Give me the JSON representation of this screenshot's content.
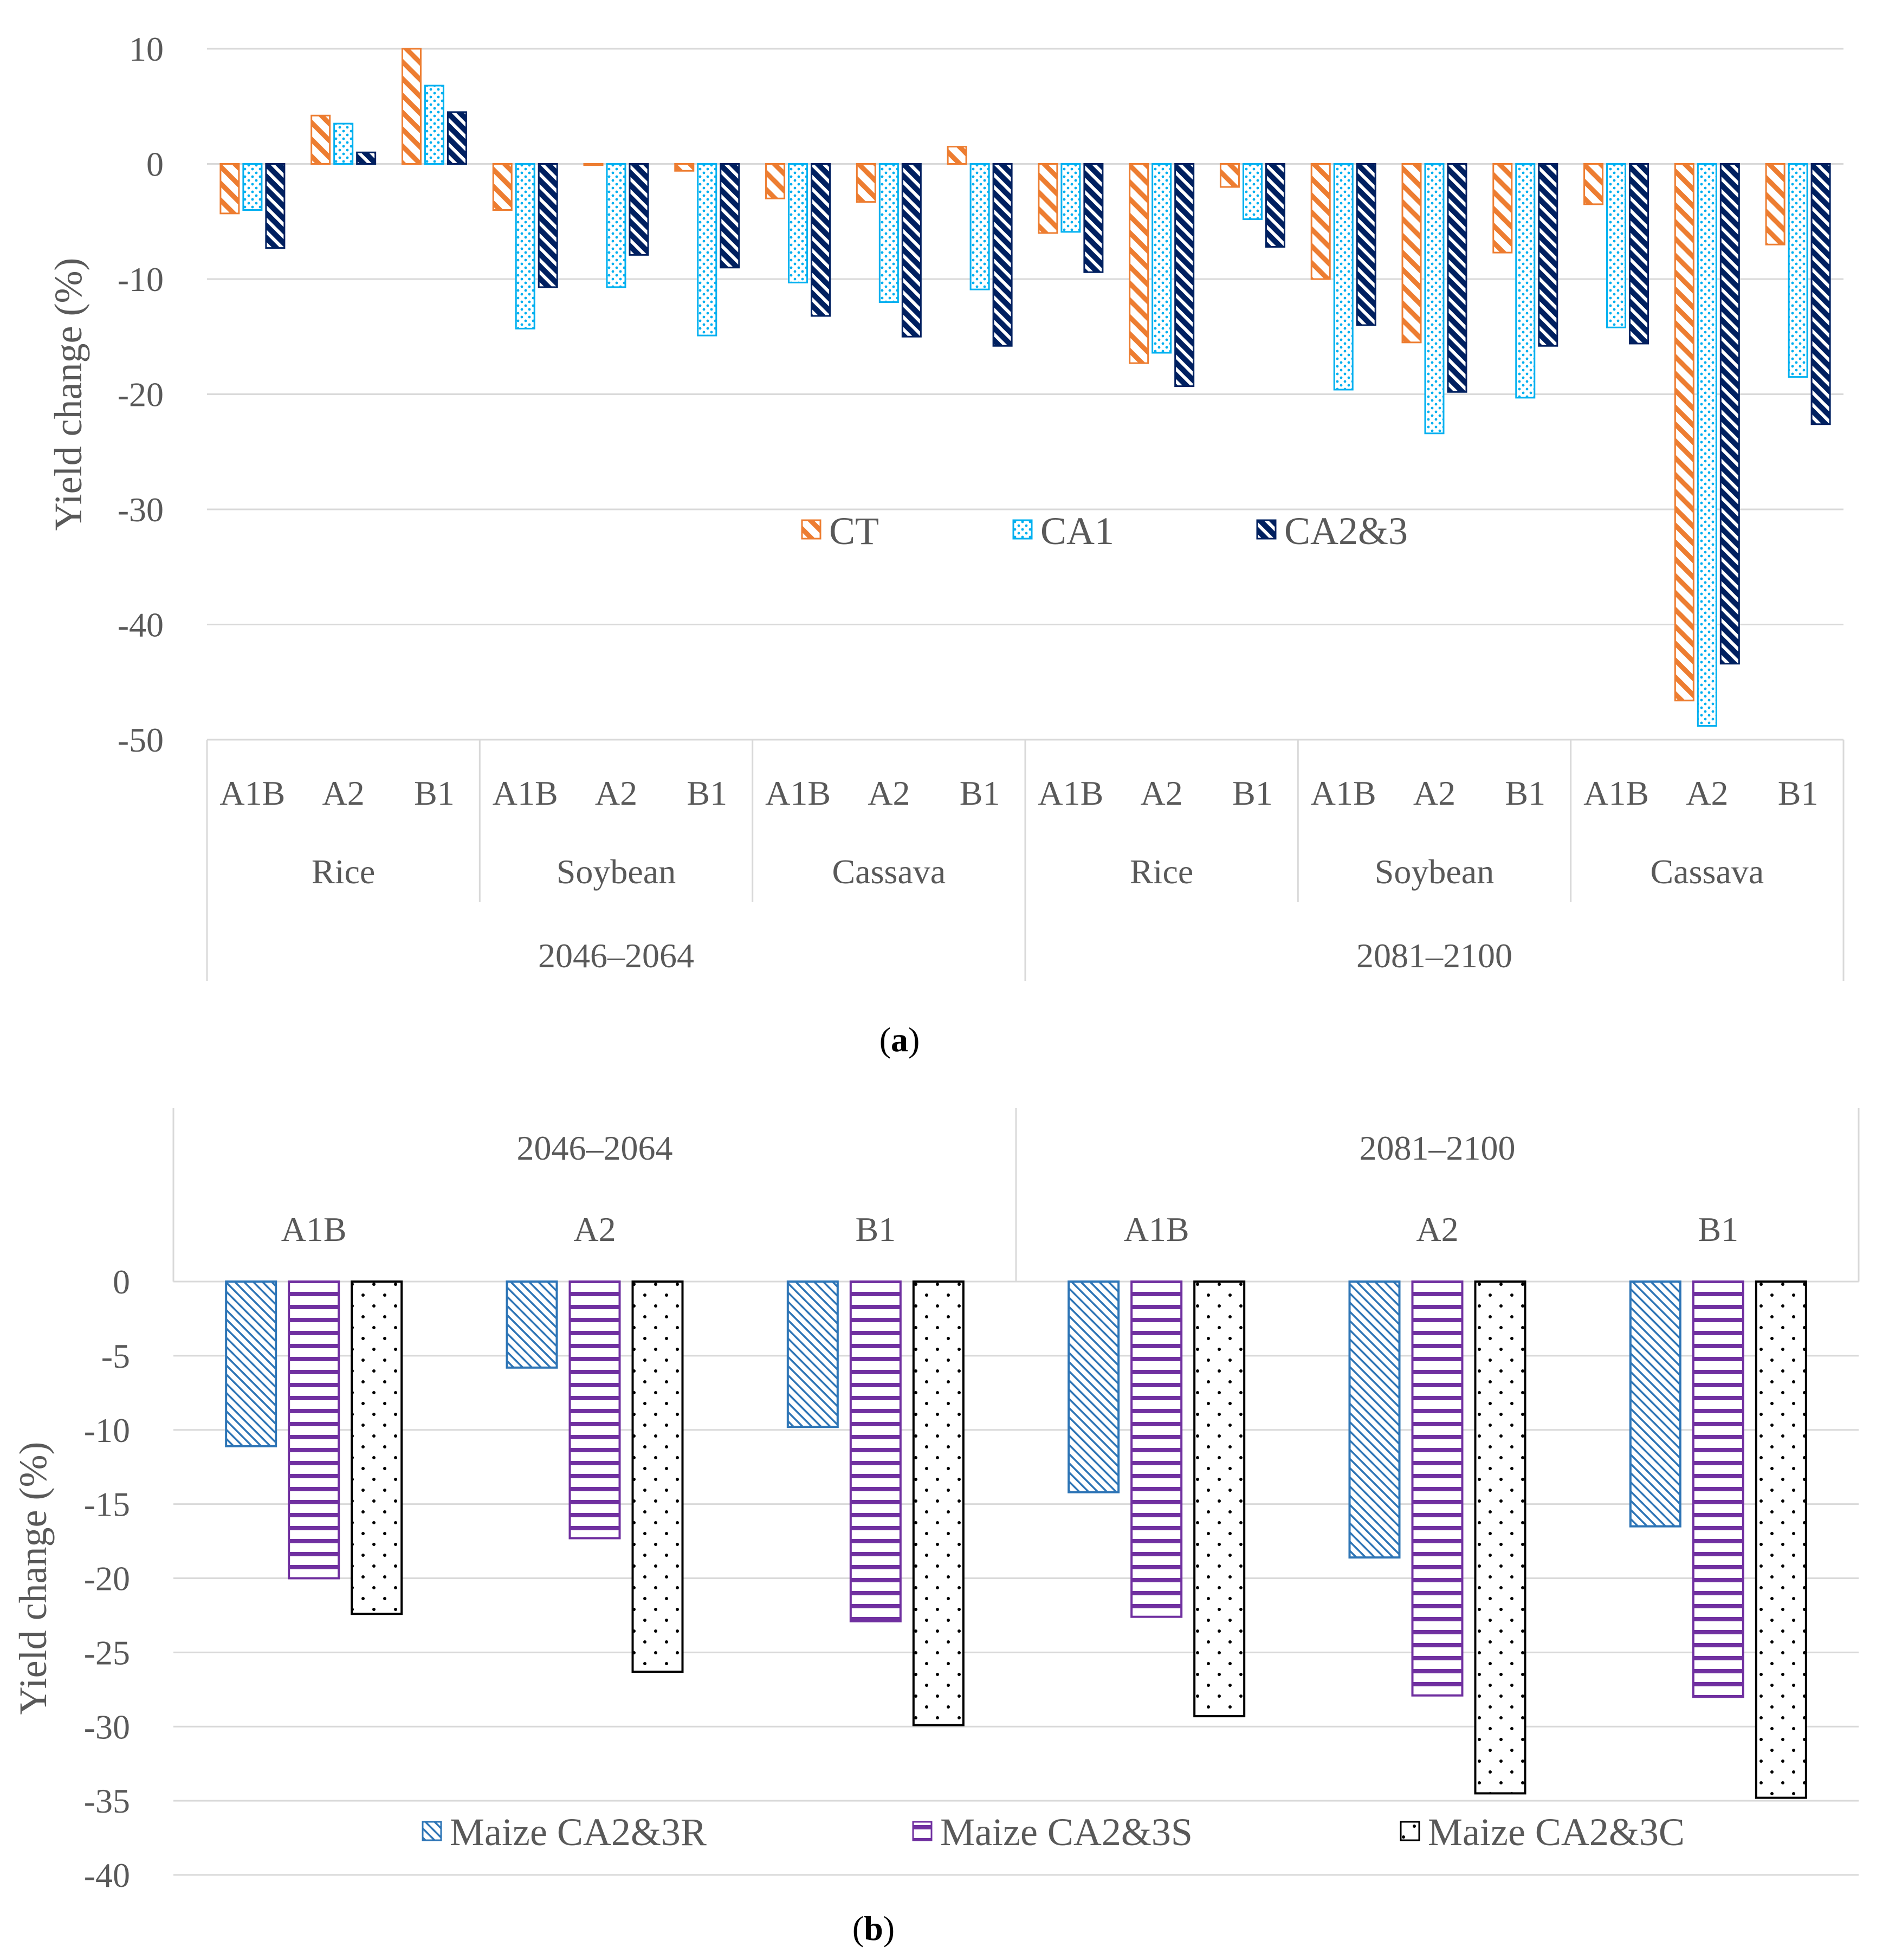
{
  "chart_data": [
    {
      "type": "bar",
      "id": "a",
      "caption_label": "a",
      "ylabel": "Yield change (%)",
      "ylim": [
        -50,
        10
      ],
      "yticks": [
        10,
        0,
        -10,
        -20,
        -30,
        -40,
        -50
      ],
      "grid": true,
      "legend_position": "center",
      "series_names": [
        "CT",
        "CA1",
        "CA2&3"
      ],
      "colors": {
        "CT": "#ED7D31",
        "CA1": "#00B0F0",
        "CA2&3": "#002060"
      },
      "periods": [
        {
          "label": "2046–2064",
          "crops": [
            {
              "label": "Rice",
              "scenarios": [
                {
                  "label": "A1B",
                  "values": [
                    -4.3,
                    -4.0,
                    -7.3
                  ]
                },
                {
                  "label": "A2",
                  "values": [
                    4.2,
                    3.5,
                    1.0
                  ]
                },
                {
                  "label": "B1",
                  "values": [
                    10.0,
                    6.8,
                    4.5
                  ]
                }
              ]
            },
            {
              "label": "Soybean",
              "scenarios": [
                {
                  "label": "A1B",
                  "values": [
                    -4.0,
                    -14.3,
                    -10.7
                  ]
                },
                {
                  "label": "A2",
                  "values": [
                    -0.1,
                    -10.7,
                    -7.9
                  ]
                },
                {
                  "label": "B1",
                  "values": [
                    -0.6,
                    -14.9,
                    -9.0
                  ]
                }
              ]
            },
            {
              "label": "Cassava",
              "scenarios": [
                {
                  "label": "A1B",
                  "values": [
                    -3.0,
                    -10.3,
                    -13.2
                  ]
                },
                {
                  "label": "A2",
                  "values": [
                    -3.3,
                    -12.0,
                    -15.0
                  ]
                },
                {
                  "label": "B1",
                  "values": [
                    1.5,
                    -10.9,
                    -15.8
                  ]
                }
              ]
            }
          ]
        },
        {
          "label": "2081–2100",
          "crops": [
            {
              "label": "Rice",
              "scenarios": [
                {
                  "label": "A1B",
                  "values": [
                    -6.0,
                    -5.9,
                    -9.4
                  ]
                },
                {
                  "label": "A2",
                  "values": [
                    -17.3,
                    -16.4,
                    -19.3
                  ]
                },
                {
                  "label": "B1",
                  "values": [
                    -2.0,
                    -4.8,
                    -7.2
                  ]
                }
              ]
            },
            {
              "label": "Soybean",
              "scenarios": [
                {
                  "label": "A1B",
                  "values": [
                    -10.0,
                    -19.6,
                    -14.0
                  ]
                },
                {
                  "label": "A2",
                  "values": [
                    -15.5,
                    -23.4,
                    -19.8
                  ]
                },
                {
                  "label": "B1",
                  "values": [
                    -7.7,
                    -20.3,
                    -15.8
                  ]
                }
              ]
            },
            {
              "label": "Cassava",
              "scenarios": [
                {
                  "label": "A1B",
                  "values": [
                    -3.5,
                    -14.2,
                    -15.6
                  ]
                },
                {
                  "label": "A2",
                  "values": [
                    -46.6,
                    -48.8,
                    -43.4
                  ]
                },
                {
                  "label": "B1",
                  "values": [
                    -7.0,
                    -18.5,
                    -22.6
                  ]
                }
              ]
            }
          ]
        }
      ]
    },
    {
      "type": "bar",
      "id": "b",
      "caption_label": "b",
      "ylabel": "Yield change (%)",
      "ylim": [
        -40,
        0
      ],
      "yticks": [
        0,
        -5,
        -10,
        -15,
        -20,
        -25,
        -30,
        -35,
        -40
      ],
      "grid": true,
      "legend_position": "bottom",
      "series_names": [
        "Maize CA2&3R",
        "Maize CA2&3S",
        "Maize CA2&3C"
      ],
      "colors": {
        "Maize CA2&3R": "#2E75B6",
        "Maize CA2&3S": "#7030A0",
        "Maize CA2&3C": "#000000"
      },
      "periods": [
        {
          "label": "2046–2064",
          "scenarios": [
            {
              "label": "A1B",
              "values": [
                -11.1,
                -20.0,
                -22.4
              ]
            },
            {
              "label": "A2",
              "values": [
                -5.8,
                -17.3,
                -26.3
              ]
            },
            {
              "label": "B1",
              "values": [
                -9.8,
                -22.9,
                -29.9
              ]
            }
          ]
        },
        {
          "label": "2081–2100",
          "scenarios": [
            {
              "label": "A1B",
              "values": [
                -14.2,
                -22.6,
                -29.3
              ]
            },
            {
              "label": "A2",
              "values": [
                -18.6,
                -27.9,
                -34.5
              ]
            },
            {
              "label": "B1",
              "values": [
                -16.5,
                -28.0,
                -34.8
              ]
            }
          ]
        }
      ]
    }
  ]
}
